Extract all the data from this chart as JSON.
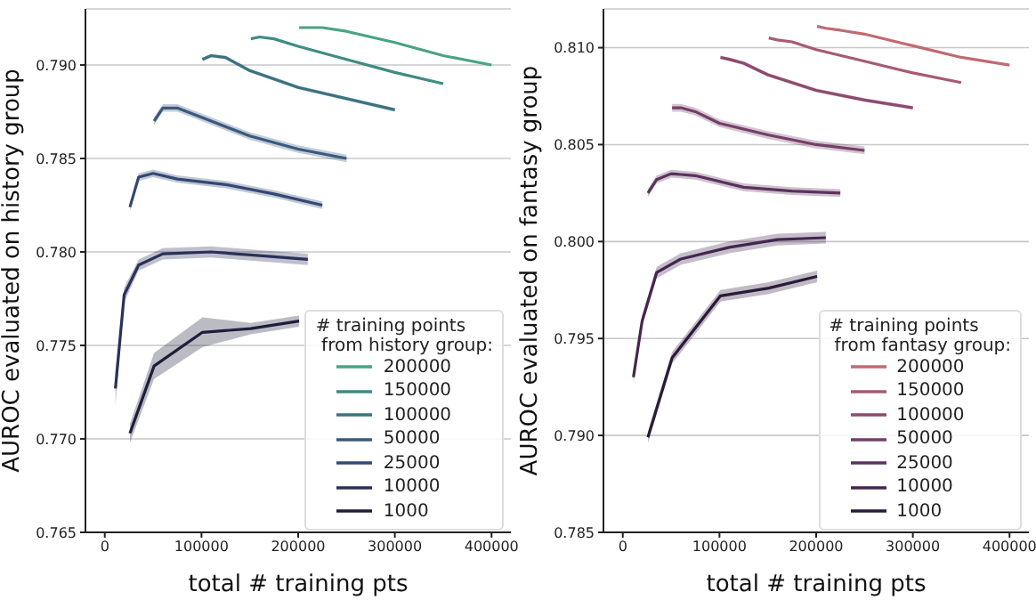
{
  "chart_data": [
    {
      "type": "line",
      "xlabel": "total # training pts",
      "ylabel": "AUROC evaluated on history group",
      "legend_title": "# training points\n from history group:",
      "legend": "bottom right",
      "grid": "y",
      "marker": "none",
      "line_style": "solid",
      "xlim": [
        -20000,
        420000
      ],
      "xticks": [
        0,
        100000,
        200000,
        300000,
        400000
      ],
      "ylim": [
        0.765,
        0.793
      ],
      "yticks": [
        0.765,
        {
          "value": 0.77,
          "label": "0.770"
        },
        0.775,
        {
          "value": 0.78,
          "label": "0.780"
        },
        0.785,
        {
          "value": 0.79,
          "label": "0.790"
        }
      ],
      "series": [
        {
          "name": "200000",
          "color": "#4aa384",
          "x": [
            201000,
            210000,
            225000,
            250000,
            300000,
            350000,
            400000
          ],
          "values": [
            0.792,
            0.792,
            0.792,
            0.7918,
            0.7912,
            0.7905,
            0.79
          ]
        },
        {
          "name": "150000",
          "color": "#3f8c84",
          "x": [
            151000,
            160000,
            175000,
            200000,
            250000,
            300000,
            350000
          ],
          "values": [
            0.7914,
            0.7915,
            0.7914,
            0.791,
            0.7903,
            0.7896,
            0.789
          ]
        },
        {
          "name": "100000",
          "color": "#3b7280",
          "x": [
            101000,
            110000,
            125000,
            150000,
            200000,
            250000,
            300000
          ],
          "values": [
            0.7903,
            0.7905,
            0.7904,
            0.7897,
            0.7888,
            0.7882,
            0.7876
          ],
          "lower": [
            0.7902,
            0.7904,
            0.7903,
            0.7896,
            0.7887,
            0.7881,
            0.7875
          ],
          "upper": [
            0.7904,
            0.7906,
            0.7905,
            0.7898,
            0.7889,
            0.7883,
            0.7877
          ]
        },
        {
          "name": "50000",
          "color": "#3a5a7e",
          "x": [
            51000,
            60000,
            75000,
            100000,
            150000,
            200000,
            250000
          ],
          "values": [
            0.787,
            0.7877,
            0.7877,
            0.7872,
            0.7862,
            0.7855,
            0.785
          ],
          "lower": [
            0.7868,
            0.7875,
            0.7875,
            0.787,
            0.786,
            0.7853,
            0.7848
          ],
          "upper": [
            0.7872,
            0.7879,
            0.7879,
            0.7874,
            0.7864,
            0.7857,
            0.7852
          ]
        },
        {
          "name": "25000",
          "color": "#344874",
          "x": [
            26000,
            35000,
            50000,
            75000,
            125000,
            175000,
            225000
          ],
          "values": [
            0.7824,
            0.784,
            0.7842,
            0.7839,
            0.7836,
            0.7831,
            0.7825
          ],
          "lower": [
            0.7822,
            0.7838,
            0.784,
            0.7837,
            0.7834,
            0.7829,
            0.7823
          ],
          "upper": [
            0.7826,
            0.7842,
            0.7844,
            0.7841,
            0.7838,
            0.7833,
            0.7827
          ]
        },
        {
          "name": "10000",
          "color": "#2a3058",
          "x": [
            11000,
            20000,
            35000,
            60000,
            110000,
            160000,
            210000
          ],
          "values": [
            0.7727,
            0.7777,
            0.7793,
            0.7799,
            0.78,
            0.7798,
            0.7796
          ],
          "lower": [
            0.7718,
            0.7773,
            0.779,
            0.7796,
            0.7797,
            0.7795,
            0.7793
          ],
          "upper": [
            0.7736,
            0.7781,
            0.7796,
            0.7802,
            0.7803,
            0.7801,
            0.7799
          ]
        },
        {
          "name": "1000",
          "color": "#1e1d3c",
          "x": [
            26000,
            51000,
            101000,
            151000,
            201000
          ],
          "values": [
            0.7703,
            0.7739,
            0.7757,
            0.7759,
            0.7763
          ],
          "lower": [
            0.7698,
            0.7732,
            0.7749,
            0.7756,
            0.776
          ],
          "upper": [
            0.7708,
            0.7746,
            0.7765,
            0.7762,
            0.7766
          ]
        }
      ]
    },
    {
      "type": "line",
      "xlabel": "total # training pts",
      "ylabel": "AUROC evaluated on fantasy group",
      "legend_title": "# training points\n from fantasy group:",
      "legend": "bottom right",
      "grid": "y",
      "marker": "none",
      "line_style": "solid",
      "xlim": [
        -20000,
        420000
      ],
      "xticks": [
        0,
        100000,
        200000,
        300000,
        400000
      ],
      "ylim": [
        0.785,
        0.812
      ],
      "yticks": [
        0.785,
        {
          "value": 0.79,
          "label": "0.790"
        },
        0.795,
        {
          "value": 0.8,
          "label": "0.800"
        },
        0.805,
        {
          "value": 0.81,
          "label": "0.810"
        }
      ],
      "series": [
        {
          "name": "200000",
          "color": "#c06a72",
          "x": [
            201000,
            210000,
            225000,
            250000,
            300000,
            350000,
            400000
          ],
          "values": [
            0.8111,
            0.811,
            0.8109,
            0.8107,
            0.8101,
            0.8095,
            0.8091
          ]
        },
        {
          "name": "150000",
          "color": "#a75a72",
          "x": [
            151000,
            160000,
            175000,
            200000,
            250000,
            300000,
            350000
          ],
          "values": [
            0.8105,
            0.8104,
            0.8103,
            0.8099,
            0.8093,
            0.8087,
            0.8082
          ]
        },
        {
          "name": "100000",
          "color": "#8d4a6e",
          "x": [
            101000,
            110000,
            125000,
            150000,
            200000,
            250000,
            300000
          ],
          "values": [
            0.8095,
            0.8094,
            0.8092,
            0.8086,
            0.8078,
            0.8073,
            0.8069
          ],
          "lower": [
            0.8094,
            0.8093,
            0.8091,
            0.8085,
            0.8077,
            0.8072,
            0.8068
          ],
          "upper": [
            0.8096,
            0.8095,
            0.8093,
            0.8087,
            0.8079,
            0.8074,
            0.807
          ]
        },
        {
          "name": "50000",
          "color": "#733f68",
          "x": [
            51000,
            60000,
            75000,
            100000,
            150000,
            200000,
            250000
          ],
          "values": [
            0.8069,
            0.8069,
            0.8067,
            0.8061,
            0.8055,
            0.805,
            0.8047
          ],
          "lower": [
            0.8067,
            0.8067,
            0.8065,
            0.8059,
            0.8053,
            0.8048,
            0.8045
          ],
          "upper": [
            0.8071,
            0.8071,
            0.8069,
            0.8063,
            0.8057,
            0.8052,
            0.8049
          ]
        },
        {
          "name": "25000",
          "color": "#5b325e",
          "x": [
            26000,
            35000,
            50000,
            75000,
            125000,
            175000,
            225000
          ],
          "values": [
            0.8025,
            0.8032,
            0.8035,
            0.8034,
            0.8028,
            0.8026,
            0.8025
          ],
          "lower": [
            0.8023,
            0.803,
            0.8033,
            0.8032,
            0.8026,
            0.8024,
            0.8023
          ],
          "upper": [
            0.8027,
            0.8034,
            0.8037,
            0.8036,
            0.803,
            0.8028,
            0.8027
          ]
        },
        {
          "name": "10000",
          "color": "#43264f",
          "x": [
            11000,
            20000,
            35000,
            60000,
            110000,
            160000,
            210000
          ],
          "values": [
            0.793,
            0.7959,
            0.7984,
            0.7991,
            0.7997,
            0.8001,
            0.8002
          ],
          "lower": [
            0.7927,
            0.7956,
            0.7981,
            0.7988,
            0.7994,
            0.7998,
            0.7999
          ],
          "upper": [
            0.7933,
            0.7962,
            0.7987,
            0.7994,
            0.8,
            0.8004,
            0.8005
          ]
        },
        {
          "name": "1000",
          "color": "#2b1a3a",
          "x": [
            26000,
            51000,
            101000,
            151000,
            201000
          ],
          "values": [
            0.7899,
            0.794,
            0.7972,
            0.7976,
            0.7982
          ],
          "lower": [
            0.7896,
            0.7937,
            0.7969,
            0.7973,
            0.7979
          ],
          "upper": [
            0.7902,
            0.7943,
            0.7975,
            0.7979,
            0.7985
          ]
        }
      ]
    }
  ]
}
